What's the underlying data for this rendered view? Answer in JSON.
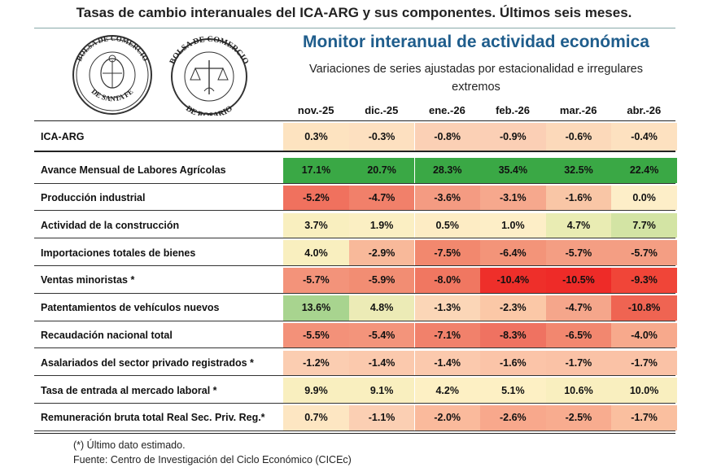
{
  "header": {
    "top_title": "Tasas de cambio interanuales del ICA-ARG y sus componentes. Últimos seis meses.",
    "monitor_title": "Monitor interanual de actividad económica",
    "monitor_subtitle": "Variaciones de series ajustadas por estacionalidad e irregulares extremos"
  },
  "seals": {
    "left": {
      "text": "BOLSA DE COMERCIO DE SANTA FE",
      "icon": "seal-santa-fe-icon"
    },
    "right": {
      "text": "BOLSA DE COMERCIO DE ROSARIO",
      "icon": "seal-rosario-icon"
    }
  },
  "chart_data": {
    "type": "table",
    "title": "Monitor interanual de actividad económica",
    "subtitle": "Variaciones de series ajustadas por estacionalidad e irregulares extremos",
    "columns": [
      "nov.-25",
      "dic.-25",
      "ene.-26",
      "feb.-26",
      "mar.-26",
      "abr.-26"
    ],
    "rows": [
      {
        "label": "ICA-ARG",
        "values": [
          "0.3%",
          "-0.3%",
          "-0.8%",
          "-0.9%",
          "-0.6%",
          "-0.4%"
        ]
      },
      {
        "label": "Avance Mensual de Labores Agrícolas",
        "values": [
          "17.1%",
          "20.7%",
          "28.3%",
          "35.4%",
          "32.5%",
          "22.4%"
        ]
      },
      {
        "label": "Producción industrial",
        "values": [
          "-5.2%",
          "-4.7%",
          "-3.6%",
          "-3.1%",
          "-1.6%",
          "0.0%"
        ]
      },
      {
        "label": "Actividad de la construcción",
        "values": [
          "3.7%",
          "1.9%",
          "0.5%",
          "1.0%",
          "4.7%",
          "7.7%"
        ]
      },
      {
        "label": "Importaciones totales de bienes",
        "values": [
          "4.0%",
          "-2.9%",
          "-7.5%",
          "-6.4%",
          "-5.7%",
          "-5.7%"
        ]
      },
      {
        "label": "Ventas minoristas *",
        "values": [
          "-5.7%",
          "-5.9%",
          "-8.0%",
          "-10.4%",
          "-10.5%",
          "-9.3%"
        ]
      },
      {
        "label": "Patentamientos de vehículos nuevos",
        "values": [
          "13.6%",
          "4.8%",
          "-1.3%",
          "-2.3%",
          "-4.7%",
          "-10.8%"
        ]
      },
      {
        "label": "Recaudación nacional total",
        "values": [
          "-5.5%",
          "-5.4%",
          "-7.1%",
          "-8.3%",
          "-6.5%",
          "-4.0%"
        ]
      },
      {
        "label": "Asalariados del sector privado registrados *",
        "values": [
          "-1.2%",
          "-1.4%",
          "-1.4%",
          "-1.6%",
          "-1.7%",
          "-1.7%"
        ]
      },
      {
        "label": "Tasa de entrada al mercado laboral *",
        "values": [
          "9.9%",
          "9.1%",
          "4.2%",
          "5.1%",
          "10.6%",
          "10.0%"
        ]
      },
      {
        "label": "Remuneración bruta total Real Sec. Priv. Reg.*",
        "values": [
          "0.7%",
          "-1.1%",
          "-2.0%",
          "-2.6%",
          "-2.5%",
          "-1.7%"
        ]
      }
    ],
    "row_colors": [
      [
        "#fde3c0",
        "#fde0c0",
        "#fbd0b5",
        "#fbcfb5",
        "#fcd9ba",
        "#fde1c0"
      ],
      [
        "#3aa845",
        "#3aa845",
        "#3aa845",
        "#3aa845",
        "#3aa845",
        "#3aa845"
      ],
      [
        "#f0715e",
        "#f1806a",
        "#f49b82",
        "#f6a88d",
        "#f9c6a6",
        "#fdeec8"
      ],
      [
        "#f9efbf",
        "#fbefc3",
        "#fdecc4",
        "#fdeec7",
        "#e9ecb3",
        "#d3e4a4"
      ],
      [
        "#f9efbf",
        "#f8b99a",
        "#f2886e",
        "#f39479",
        "#f49e83",
        "#f49e83"
      ],
      [
        "#f3937a",
        "#f28d73",
        "#f07761",
        "#ee2f2a",
        "#ee2b28",
        "#f04538"
      ],
      [
        "#a8d48f",
        "#ecebb6",
        "#fbd6b7",
        "#fbc8a7",
        "#f5a68b",
        "#ef6452"
      ],
      [
        "#f39179",
        "#f3947b",
        "#f1816b",
        "#ef7261",
        "#f2876f",
        "#f7a98c"
      ],
      [
        "#fbcdb1",
        "#fbc9ad",
        "#fbc9ad",
        "#fbc4a8",
        "#fac2a6",
        "#fac2a6"
      ],
      [
        "#f9efbf",
        "#f9efbf",
        "#fdf0c4",
        "#fdf0c4",
        "#f9efbf",
        "#f9efbf"
      ],
      [
        "#fde6c2",
        "#fbcfb3",
        "#faba9c",
        "#f8a88c",
        "#f8ac8f",
        "#fabf9f"
      ]
    ]
  },
  "footer": {
    "footnote": "(*) Último dato estimado.",
    "source": "Fuente: Centro de Investigación del Ciclo Económico (CICEc)"
  }
}
